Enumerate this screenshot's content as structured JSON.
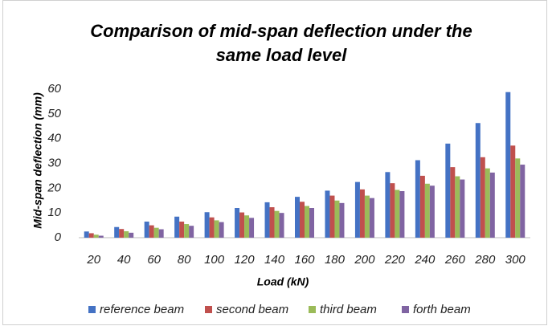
{
  "chart_data": {
    "type": "bar",
    "title": "Comparison of mid-span deflection under the same load level",
    "xlabel": "Load (kN)",
    "ylabel": "Mid-span deflection (mm)",
    "categories": [
      "20",
      "40",
      "60",
      "80",
      "100",
      "120",
      "140",
      "160",
      "180",
      "200",
      "220",
      "240",
      "260",
      "280",
      "300"
    ],
    "series": [
      {
        "name": "reference beam",
        "color": "#4472c4",
        "values": [
          2.5,
          4.3,
          6.5,
          8.5,
          10.3,
          12,
          14.3,
          16.5,
          19,
          22.5,
          26.5,
          31.3,
          38,
          46.3,
          58.8
        ]
      },
      {
        "name": "second beam",
        "color": "#c0504d",
        "values": [
          1.8,
          3.5,
          5,
          6.5,
          8.2,
          10.2,
          12.3,
          14.5,
          17,
          19.5,
          22,
          25,
          28.5,
          32.5,
          37.2
        ]
      },
      {
        "name": "third beam",
        "color": "#9bbb59",
        "values": [
          1.2,
          2.6,
          4,
          5.5,
          7,
          9,
          10.8,
          12.8,
          15,
          17,
          19.3,
          21.8,
          24.8,
          28,
          32
        ]
      },
      {
        "name": "forth beam",
        "color": "#8064a2",
        "values": [
          0.8,
          2,
          3.4,
          4.8,
          6.3,
          8,
          10,
          12,
          14,
          16,
          18.8,
          21,
          23.5,
          26.3,
          29.5
        ]
      }
    ],
    "ylim": [
      0,
      60
    ],
    "yticks": [
      0,
      10,
      20,
      30,
      40,
      50,
      60
    ],
    "grid": false,
    "legend": "bottom"
  }
}
